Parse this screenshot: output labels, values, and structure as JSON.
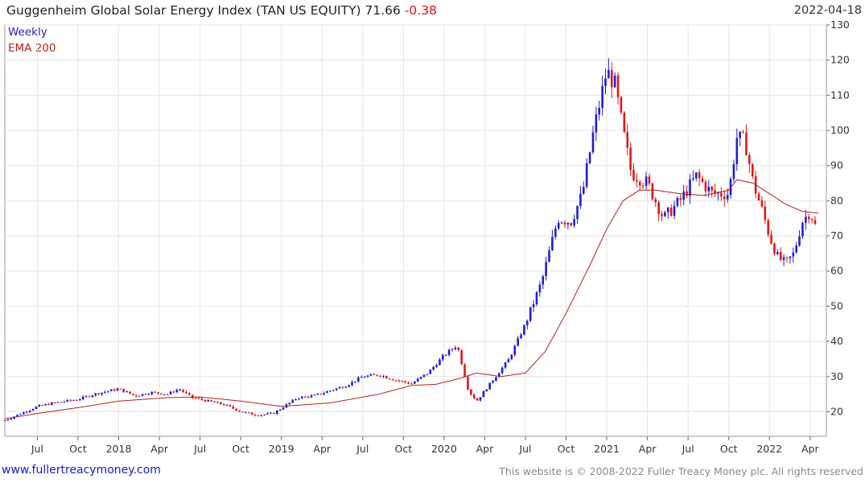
{
  "header": {
    "title": "Guggenheim Global Solar Energy Index (TAN US EQUITY)",
    "last": "71.66",
    "change": "-0.38",
    "date": "2022-04-18"
  },
  "legend": {
    "period": "Weekly",
    "ema": "EMA 200"
  },
  "footer": {
    "site": "www.fullertreacymoney.com",
    "copyright": "This website is © 2008-2022 Fuller Treacy Money plc. All rights reserved"
  },
  "colors": {
    "up": "#1f1fd0",
    "down": "#e01818",
    "ema": "#b22222",
    "grid": "#e4e4e4"
  },
  "chart_data": {
    "type": "candlestick",
    "title": "Guggenheim Global Solar Energy Index (TAN US EQUITY)",
    "ylim": [
      13,
      130
    ],
    "yticks": [
      20,
      30,
      40,
      50,
      60,
      70,
      80,
      90,
      100,
      110,
      120,
      130
    ],
    "xlim": [
      2017.3,
      2022.35
    ],
    "xticks": [
      {
        "label": "Jul",
        "t": 2017.5
      },
      {
        "label": "Oct",
        "t": 2017.75
      },
      {
        "label": "2018",
        "t": 2018.0
      },
      {
        "label": "Apr",
        "t": 2018.25
      },
      {
        "label": "Jul",
        "t": 2018.5
      },
      {
        "label": "Oct",
        "t": 2018.75
      },
      {
        "label": "2019",
        "t": 2019.0
      },
      {
        "label": "Apr",
        "t": 2019.25
      },
      {
        "label": "Jul",
        "t": 2019.5
      },
      {
        "label": "Oct",
        "t": 2019.75
      },
      {
        "label": "2020",
        "t": 2020.0
      },
      {
        "label": "Apr",
        "t": 2020.25
      },
      {
        "label": "Jul",
        "t": 2020.5
      },
      {
        "label": "Oct",
        "t": 2020.75
      },
      {
        "label": "2021",
        "t": 2021.0
      },
      {
        "label": "Apr",
        "t": 2021.25
      },
      {
        "label": "Jul",
        "t": 2021.5
      },
      {
        "label": "Oct",
        "t": 2021.75
      },
      {
        "label": "2022",
        "t": 2022.0
      },
      {
        "label": "Apr",
        "t": 2022.25
      }
    ],
    "price_path": [
      [
        2017.3,
        17.5
      ],
      [
        2017.4,
        19.5
      ],
      [
        2017.5,
        21.5
      ],
      [
        2017.6,
        22.5
      ],
      [
        2017.75,
        23.5
      ],
      [
        2017.85,
        25
      ],
      [
        2018.0,
        26.5
      ],
      [
        2018.1,
        24.5
      ],
      [
        2018.2,
        25.5
      ],
      [
        2018.3,
        25
      ],
      [
        2018.37,
        26.5
      ],
      [
        2018.45,
        24
      ],
      [
        2018.55,
        23
      ],
      [
        2018.65,
        22
      ],
      [
        2018.75,
        20
      ],
      [
        2018.85,
        19
      ],
      [
        2018.95,
        19.5
      ],
      [
        2019.0,
        21
      ],
      [
        2019.1,
        24
      ],
      [
        2019.2,
        24.5
      ],
      [
        2019.3,
        26
      ],
      [
        2019.4,
        27.5
      ],
      [
        2019.5,
        30
      ],
      [
        2019.6,
        30.5
      ],
      [
        2019.7,
        29
      ],
      [
        2019.8,
        28
      ],
      [
        2019.9,
        31
      ],
      [
        2020.0,
        36
      ],
      [
        2020.08,
        39
      ],
      [
        2020.15,
        26
      ],
      [
        2020.2,
        23
      ],
      [
        2020.3,
        29
      ],
      [
        2020.4,
        35
      ],
      [
        2020.5,
        45
      ],
      [
        2020.6,
        57
      ],
      [
        2020.7,
        75
      ],
      [
        2020.78,
        74
      ],
      [
        2020.85,
        82
      ],
      [
        2020.92,
        100
      ],
      [
        2021.0,
        117
      ],
      [
        2021.05,
        113
      ],
      [
        2021.1,
        100
      ],
      [
        2021.15,
        88
      ],
      [
        2021.25,
        85
      ],
      [
        2021.35,
        75
      ],
      [
        2021.45,
        80
      ],
      [
        2021.55,
        87
      ],
      [
        2021.65,
        82
      ],
      [
        2021.75,
        82
      ],
      [
        2021.8,
        98
      ],
      [
        2021.85,
        97
      ],
      [
        2021.9,
        85
      ],
      [
        2021.95,
        78
      ],
      [
        2022.0,
        70
      ],
      [
        2022.05,
        64
      ],
      [
        2022.1,
        62
      ],
      [
        2022.15,
        65
      ],
      [
        2022.2,
        74
      ],
      [
        2022.25,
        77
      ],
      [
        2022.29,
        71.66
      ]
    ],
    "ema_200": [
      [
        2017.3,
        18
      ],
      [
        2017.5,
        19.5
      ],
      [
        2017.8,
        21.5
      ],
      [
        2018.0,
        23
      ],
      [
        2018.3,
        24
      ],
      [
        2018.5,
        24.2
      ],
      [
        2018.75,
        23
      ],
      [
        2019.0,
        21.5
      ],
      [
        2019.3,
        22.5
      ],
      [
        2019.6,
        25
      ],
      [
        2019.8,
        27.5
      ],
      [
        2019.95,
        27.8
      ],
      [
        2020.1,
        29.5
      ],
      [
        2020.2,
        31
      ],
      [
        2020.35,
        30
      ],
      [
        2020.5,
        31
      ],
      [
        2020.62,
        37
      ],
      [
        2020.75,
        48
      ],
      [
        2020.9,
        62
      ],
      [
        2021.0,
        72
      ],
      [
        2021.1,
        80
      ],
      [
        2021.2,
        83
      ],
      [
        2021.3,
        83
      ],
      [
        2021.45,
        82
      ],
      [
        2021.6,
        81.5
      ],
      [
        2021.75,
        83
      ],
      [
        2021.8,
        86
      ],
      [
        2021.9,
        85
      ],
      [
        2022.0,
        82
      ],
      [
        2022.1,
        79
      ],
      [
        2022.2,
        77
      ],
      [
        2022.3,
        76.5
      ]
    ],
    "last": 71.66,
    "change": -0.38
  }
}
